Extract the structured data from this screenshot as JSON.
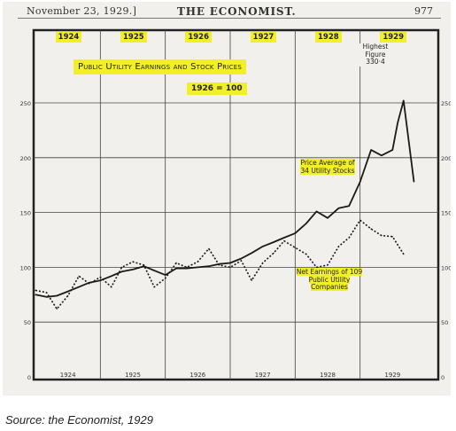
{
  "header": {
    "date": "November 23, 1929.]",
    "masthead": "THE ECONOMIST.",
    "page_number": "977"
  },
  "caption": "Source: the Economist, 1929",
  "colors": {
    "highlight": "#f3ef27",
    "paper": "#f1f0ec",
    "ink": "#222222"
  },
  "chart_data": {
    "type": "line",
    "title": "Public Utility Earnings and Stock Prices",
    "subtitle": "1926 = 100",
    "x_unit": "year",
    "xlim": [
      1924,
      1930
    ],
    "ylim": [
      0,
      250
    ],
    "year_labels_top": [
      "1924",
      "1925",
      "1926",
      "1927",
      "1928",
      "1929"
    ],
    "year_labels_bottom": [
      "1924",
      "1925",
      "1926",
      "1927",
      "1928",
      "1929"
    ],
    "y_ticks": [
      0,
      50,
      100,
      150,
      200,
      250
    ],
    "grid": true,
    "series": [
      {
        "name": "Price Average of 34 Utility Stocks",
        "style": "solid",
        "x": [
          1924.0,
          1924.17,
          1924.33,
          1924.5,
          1924.67,
          1924.83,
          1925.0,
          1925.17,
          1925.33,
          1925.5,
          1925.67,
          1925.83,
          1926.0,
          1926.17,
          1926.33,
          1926.5,
          1926.67,
          1926.83,
          1927.0,
          1927.17,
          1927.33,
          1927.5,
          1927.67,
          1927.83,
          1928.0,
          1928.17,
          1928.33,
          1928.5,
          1928.67,
          1928.83,
          1929.0,
          1929.17,
          1929.33,
          1929.5,
          1929.58,
          1929.67,
          1929.83
        ],
        "values": [
          75,
          73,
          74,
          78,
          82,
          86,
          88,
          92,
          96,
          98,
          101,
          97,
          93,
          99,
          99,
          100,
          101,
          103,
          104,
          108,
          113,
          119,
          123,
          127,
          131,
          140,
          151,
          145,
          154,
          156,
          178,
          207,
          202,
          207,
          232,
          252,
          178
        ]
      },
      {
        "name": "Net Earnings of 109 Public Utility Companies",
        "style": "dotted",
        "x": [
          1924.0,
          1924.17,
          1924.33,
          1924.5,
          1924.67,
          1924.83,
          1925.0,
          1925.17,
          1925.33,
          1925.5,
          1925.67,
          1925.83,
          1926.0,
          1926.17,
          1926.33,
          1926.5,
          1926.67,
          1926.83,
          1927.0,
          1927.17,
          1927.33,
          1927.5,
          1927.67,
          1927.83,
          1928.0,
          1928.17,
          1928.33,
          1928.5,
          1928.67,
          1928.83,
          1929.0,
          1929.17,
          1929.33,
          1929.5,
          1929.67
        ],
        "values": [
          79,
          77,
          62,
          74,
          92,
          85,
          91,
          82,
          100,
          105,
          102,
          82,
          90,
          104,
          100,
          105,
          117,
          102,
          100,
          106,
          88,
          104,
          113,
          124,
          118,
          112,
          100,
          102,
          119,
          127,
          143,
          135,
          129,
          128,
          112
        ]
      }
    ],
    "annotations": [
      {
        "text": "Highest Figure 330·4"
      },
      {
        "text": "Price Average of 34 Utility Stocks"
      },
      {
        "text": "Net Earnings of 109 Public Utility Companies"
      }
    ]
  }
}
